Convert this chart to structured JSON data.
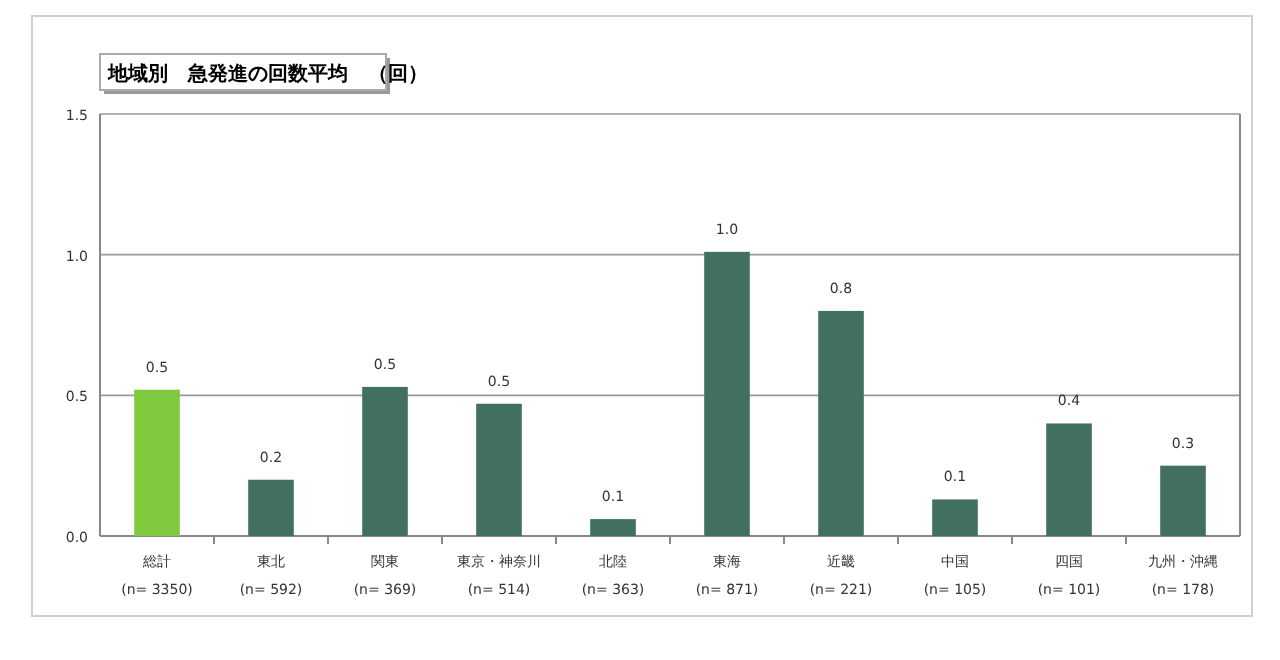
{
  "chart_data": {
    "type": "bar",
    "title": "地域別　急発進の回数平均　（回）",
    "categories": [
      "総計\n(n= 3350)",
      "東北\n(n= 592)",
      "関東\n(n= 369)",
      "東京・神奈川\n(n= 514)",
      "北陸\n(n= 363)",
      "東海\n(n= 871)",
      "近畿\n(n= 221)",
      "中国\n(n= 105)",
      "四国\n(n= 101)",
      "九州・沖縄\n(n= 178)"
    ],
    "values": [
      0.52,
      0.2,
      0.53,
      0.47,
      0.06,
      1.01,
      0.8,
      0.13,
      0.4,
      0.25
    ],
    "value_labels": [
      "0.5",
      "0.2",
      "0.5",
      "0.5",
      "0.1",
      "1.0",
      "0.8",
      "0.1",
      "0.4",
      "0.3"
    ],
    "colors": [
      "#7fc93f",
      "#41705f",
      "#41705f",
      "#41705f",
      "#41705f",
      "#41705f",
      "#41705f",
      "#41705f",
      "#41705f",
      "#41705f"
    ],
    "ylim": [
      0,
      1.5
    ],
    "yticks": [
      {
        "value": 0,
        "label": "0.0"
      },
      {
        "value": 0.5,
        "label": "0.5"
      },
      {
        "value": 1,
        "label": "1.0"
      },
      {
        "value": 1.5,
        "label": "1.5"
      }
    ],
    "grid": "y"
  }
}
